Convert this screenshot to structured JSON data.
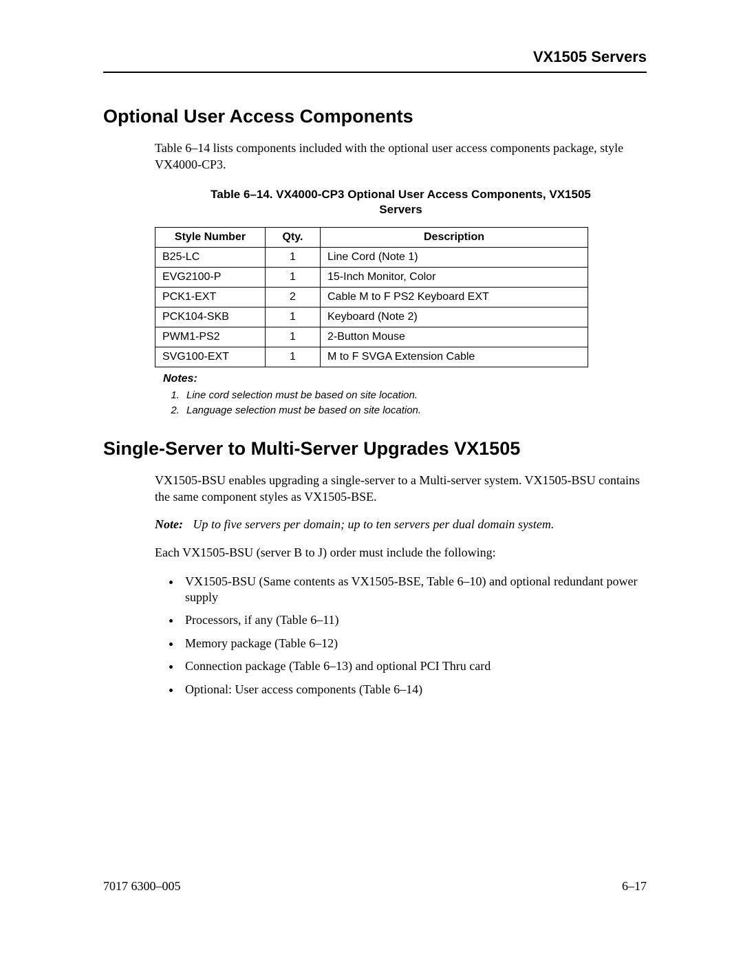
{
  "header": {
    "title": "VX1505 Servers"
  },
  "section1": {
    "heading": "Optional User Access Components",
    "intro": "Table 6–14 lists components included with the optional user access components package, style VX4000-CP3.",
    "table_caption": "Table 6–14.  VX4000-CP3 Optional User Access Components, VX1505 Servers",
    "columns": [
      "Style Number",
      "Qty.",
      "Description"
    ],
    "rows": [
      [
        "B25-LC",
        "1",
        "Line Cord (Note 1)"
      ],
      [
        "EVG2100-P",
        "1",
        "15-Inch Monitor, Color"
      ],
      [
        "PCK1-EXT",
        "2",
        "Cable M to F PS2 Keyboard EXT"
      ],
      [
        "PCK104-SKB",
        "1",
        "Keyboard (Note 2)"
      ],
      [
        "PWM1-PS2",
        "1",
        "2-Button Mouse"
      ],
      [
        "SVG100-EXT",
        "1",
        "M to F SVGA Extension Cable"
      ]
    ],
    "notes_heading": "Notes:",
    "notes": [
      "Line cord selection must be based on site location.",
      "Language selection must be based on site location."
    ]
  },
  "section2": {
    "heading": "Single-Server to Multi-Server Upgrades VX1505",
    "para1": "VX1505-BSU enables upgrading a single-server to a Multi-server system.   VX1505-BSU contains the same component styles as VX1505-BSE.",
    "note_label": "Note:",
    "note_body": "Up to five servers per domain; up to ten servers per dual domain system.",
    "para2": "Each VX1505-BSU (server B to J) order must include the following:",
    "bullets": [
      "VX1505-BSU (Same contents as VX1505-BSE, Table 6–10) and optional redundant power supply",
      "Processors, if any (Table 6–11)",
      "Memory package (Table 6–12)",
      "Connection package (Table 6–13) and optional PCI Thru card",
      "Optional: User access components (Table 6–14)"
    ]
  },
  "footer": {
    "left": "7017 6300–005",
    "right": "6–17"
  },
  "colors": {
    "text": "#000000",
    "background": "#ffffff",
    "rule": "#000000",
    "border": "#000000"
  }
}
